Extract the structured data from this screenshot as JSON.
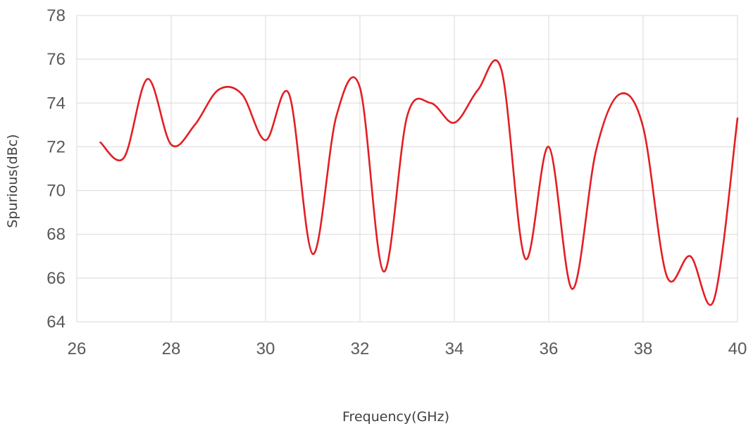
{
  "chart_data": {
    "type": "line",
    "title": "",
    "xlabel": "Frequency(GHz)",
    "ylabel": "Spurious(dBc)",
    "xlim": [
      26,
      40
    ],
    "ylim": [
      64,
      78
    ],
    "xticks": [
      26,
      28,
      30,
      32,
      34,
      36,
      38,
      40
    ],
    "yticks": [
      64,
      66,
      68,
      70,
      72,
      74,
      76,
      78
    ],
    "grid": true,
    "legend": "none",
    "series": [
      {
        "color": "#e31e24",
        "smooth": true,
        "x": [
          26.5,
          27.0,
          27.5,
          28.0,
          28.5,
          29.0,
          29.5,
          30.0,
          30.5,
          31.0,
          31.5,
          32.0,
          32.5,
          33.0,
          33.5,
          34.0,
          34.5,
          35.0,
          35.5,
          36.0,
          36.5,
          37.0,
          37.5,
          38.0,
          38.5,
          39.0,
          39.5,
          40.0
        ],
        "y": [
          72.2,
          71.5,
          75.1,
          72.1,
          73.0,
          74.6,
          74.4,
          72.3,
          74.4,
          67.1,
          73.4,
          74.7,
          66.3,
          73.4,
          74.0,
          73.1,
          74.6,
          75.5,
          66.9,
          72.0,
          65.5,
          71.8,
          74.4,
          72.9,
          66.1,
          67.0,
          65.0,
          73.3
        ]
      }
    ]
  }
}
